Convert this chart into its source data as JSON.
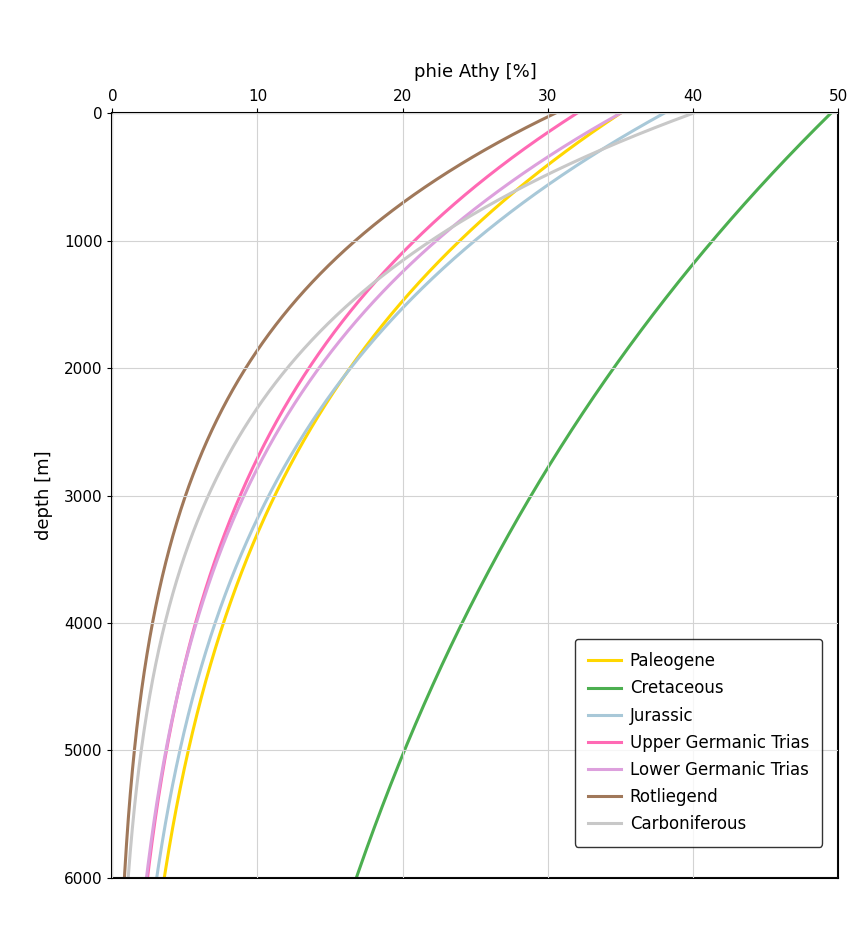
{
  "title": "phie Athy [%]",
  "ylabel": "depth [m]",
  "xlim": [
    0,
    50
  ],
  "ylim": [
    6000,
    0
  ],
  "xticks": [
    0,
    10,
    20,
    30,
    40,
    50
  ],
  "yticks": [
    0,
    1000,
    2000,
    3000,
    4000,
    5000,
    6000
  ],
  "series": [
    {
      "name": "Paleogene",
      "color": "#FFD700",
      "phi0": 35.0,
      "c": 0.00038
    },
    {
      "name": "Cretaceous",
      "color": "#4CAF50",
      "phi0": 49.5,
      "c": 0.00018
    },
    {
      "name": "Jurassic",
      "color": "#A8C8D8",
      "phi0": 38.0,
      "c": 0.00042
    },
    {
      "name": "Upper Germanic Trias",
      "color": "#FF69B4",
      "phi0": 32.0,
      "c": 0.00043
    },
    {
      "name": "Lower Germanic Trias",
      "color": "#DDA0DD",
      "phi0": 35.0,
      "c": 0.00045
    },
    {
      "name": "Rotliegend",
      "color": "#A0785A",
      "phi0": 30.5,
      "c": 0.0006
    },
    {
      "name": "Carboniferous",
      "color": "#C8C8C8",
      "phi0": 40.0,
      "c": 0.0006
    }
  ],
  "grid_color": "#D3D3D3",
  "linewidth": 2.2,
  "figsize": [
    8.64,
    9.44
  ],
  "dpi": 100
}
